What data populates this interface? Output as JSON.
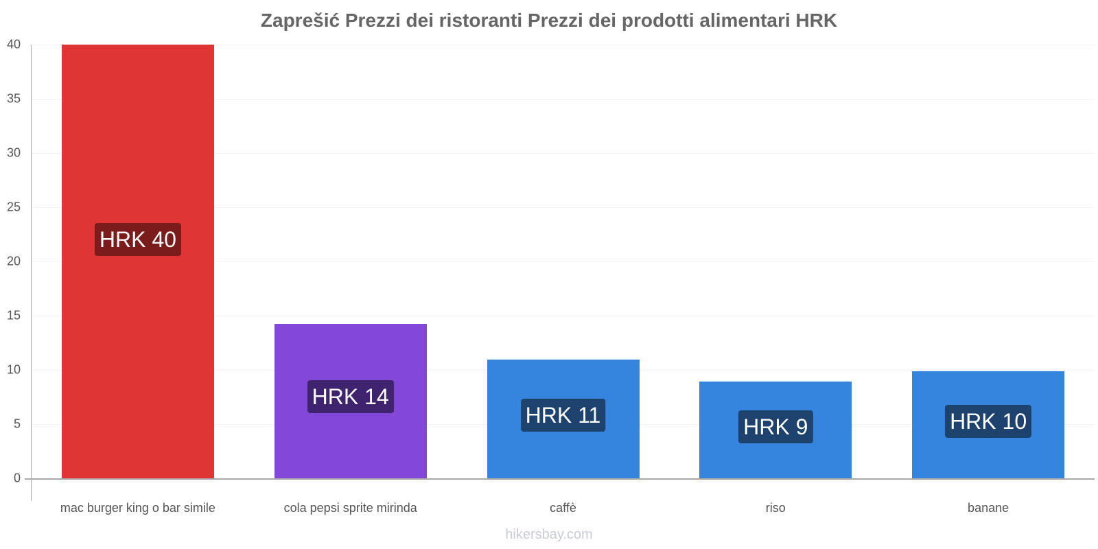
{
  "chart_data": {
    "type": "bar",
    "title": "Zaprešić Prezzi dei ristoranti Prezzi dei prodotti alimentari HRK",
    "xlabel": "",
    "ylabel": "",
    "ylim": [
      0,
      40
    ],
    "yticks": [
      0,
      5,
      10,
      15,
      20,
      25,
      30,
      35,
      40
    ],
    "grid": true,
    "legend": null,
    "categories": [
      "mac burger king o bar simile",
      "cola pepsi sprite mirinda",
      "caffè",
      "riso",
      "banane"
    ],
    "values": [
      40,
      14.25,
      10.95,
      8.9,
      9.9
    ],
    "data_labels": [
      "HRK 40",
      "HRK 14",
      "HRK 11",
      "HRK 9",
      "HRK 10"
    ],
    "bar_colors": [
      "#e03535",
      "#8249d8",
      "#3584de",
      "#3584de",
      "#3584de"
    ],
    "label_bg_colors": [
      "#7a1c1c",
      "#40236e",
      "#1d426e",
      "#1d426e",
      "#1d426e"
    ]
  },
  "footer": {
    "watermark": "hikersbay.com"
  }
}
